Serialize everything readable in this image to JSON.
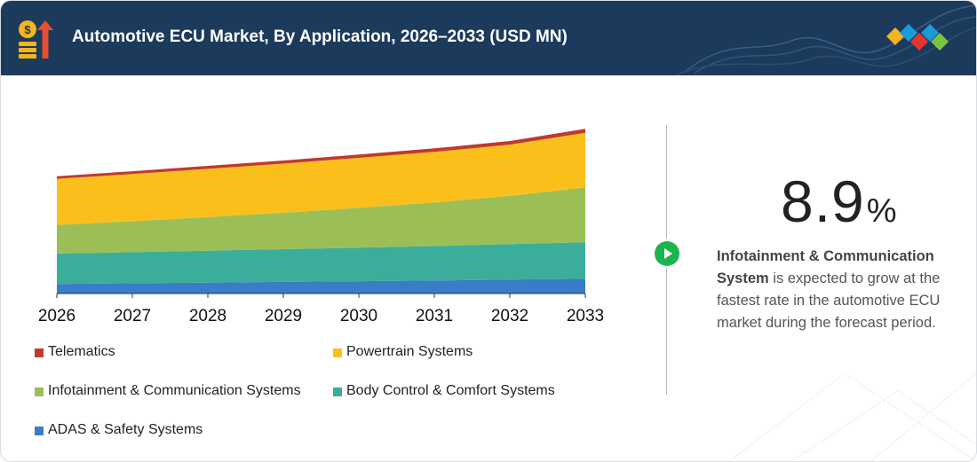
{
  "header": {
    "title": "Automotive ECU Market, By Application, 2026–2033 (USD MN)",
    "icon": "money-growth-icon",
    "logo": "diamond-logo"
  },
  "colors": {
    "header_bg": "#1c3a5c",
    "accent_green": "#1db44e"
  },
  "chart_data": {
    "type": "area",
    "stacked": true,
    "x": [
      "2026",
      "2027",
      "2028",
      "2029",
      "2030",
      "2031",
      "2032",
      "2033"
    ],
    "series": [
      {
        "name": "ADAS & Safety Systems",
        "color": "#3a7cc6",
        "values": [
          11,
          11.8,
          12.6,
          13.4,
          14.2,
          15,
          16,
          17
        ]
      },
      {
        "name": "Body Control & Comfort Systems",
        "color": "#3aae9b",
        "values": [
          35,
          35.8,
          36.7,
          37.6,
          38.6,
          39.6,
          40.8,
          42
        ]
      },
      {
        "name": "Infotainment & Communication Systems",
        "color": "#9bbf56",
        "values": [
          33,
          35.6,
          38.7,
          42,
          45.8,
          50.2,
          55.5,
          63
        ]
      },
      {
        "name": "Powertrain Systems",
        "color": "#fbbf1c",
        "values": [
          53,
          54.3,
          55.5,
          56.5,
          57.5,
          58.2,
          59,
          63
        ]
      },
      {
        "name": "Telematics",
        "color": "#bf3a2e",
        "values": [
          3,
          3.2,
          3.4,
          3.6,
          3.8,
          4,
          4.2,
          4.5
        ]
      }
    ],
    "ylim": [
      0,
      200
    ],
    "legend_order": [
      "Telematics",
      "Powertrain Systems",
      "Infotainment & Communication Systems",
      "Body Control & Comfort Systems",
      "ADAS & Safety Systems"
    ],
    "legend_position": "bottom",
    "grid": false
  },
  "highlight": {
    "value": "8.9",
    "unit": "%",
    "bold_text": "Infotainment & Communication System",
    "text": " is expected to grow at the fastest rate in the automotive ECU market during the forecast period."
  }
}
